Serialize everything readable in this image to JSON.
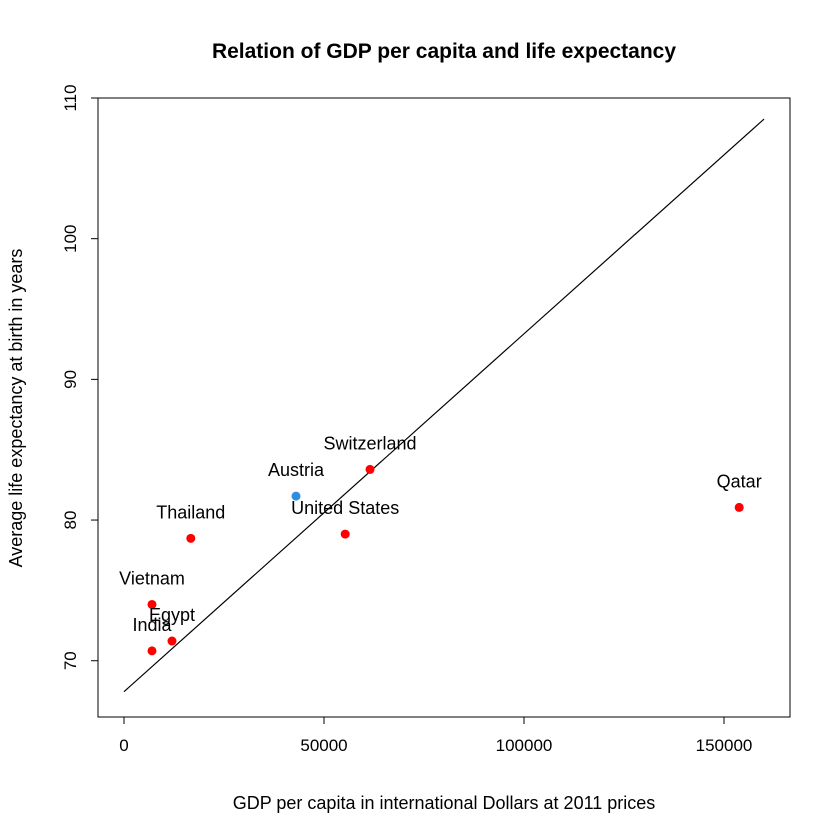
{
  "chart_data": {
    "type": "scatter",
    "title": "Relation of GDP per capita and life expectancy",
    "xlabel": "GDP per capita in international Dollars at 2011 prices",
    "ylabel": "Average life expectancy at birth in years",
    "xlim": [
      -6500,
      166500
    ],
    "ylim": [
      66,
      110
    ],
    "x_ticks": [
      0,
      50000,
      100000,
      150000
    ],
    "y_ticks": [
      70,
      80,
      90,
      100,
      110
    ],
    "grid": false,
    "legend": "none",
    "points": [
      {
        "label": "Qatar",
        "x": 153800,
        "y": 80.9,
        "color": "#ff0000"
      },
      {
        "label": "Switzerland",
        "x": 61500,
        "y": 83.6,
        "color": "#ff0000"
      },
      {
        "label": "Austria",
        "x": 43000,
        "y": 81.7,
        "color": "#2e8ee0"
      },
      {
        "label": "United States",
        "x": 55300,
        "y": 79.0,
        "color": "#ff0000"
      },
      {
        "label": "Thailand",
        "x": 16700,
        "y": 78.7,
        "color": "#ff0000"
      },
      {
        "label": "Vietnam",
        "x": 7000,
        "y": 74.0,
        "color": "#ff0000"
      },
      {
        "label": "Egypt",
        "x": 12000,
        "y": 71.4,
        "color": "#ff0000"
      },
      {
        "label": "India",
        "x": 7000,
        "y": 70.7,
        "color": "#ff0000"
      }
    ],
    "regression_line": {
      "x_start": 0,
      "y_start": 67.8,
      "x_end": 160000,
      "y_end": 108.5
    }
  }
}
